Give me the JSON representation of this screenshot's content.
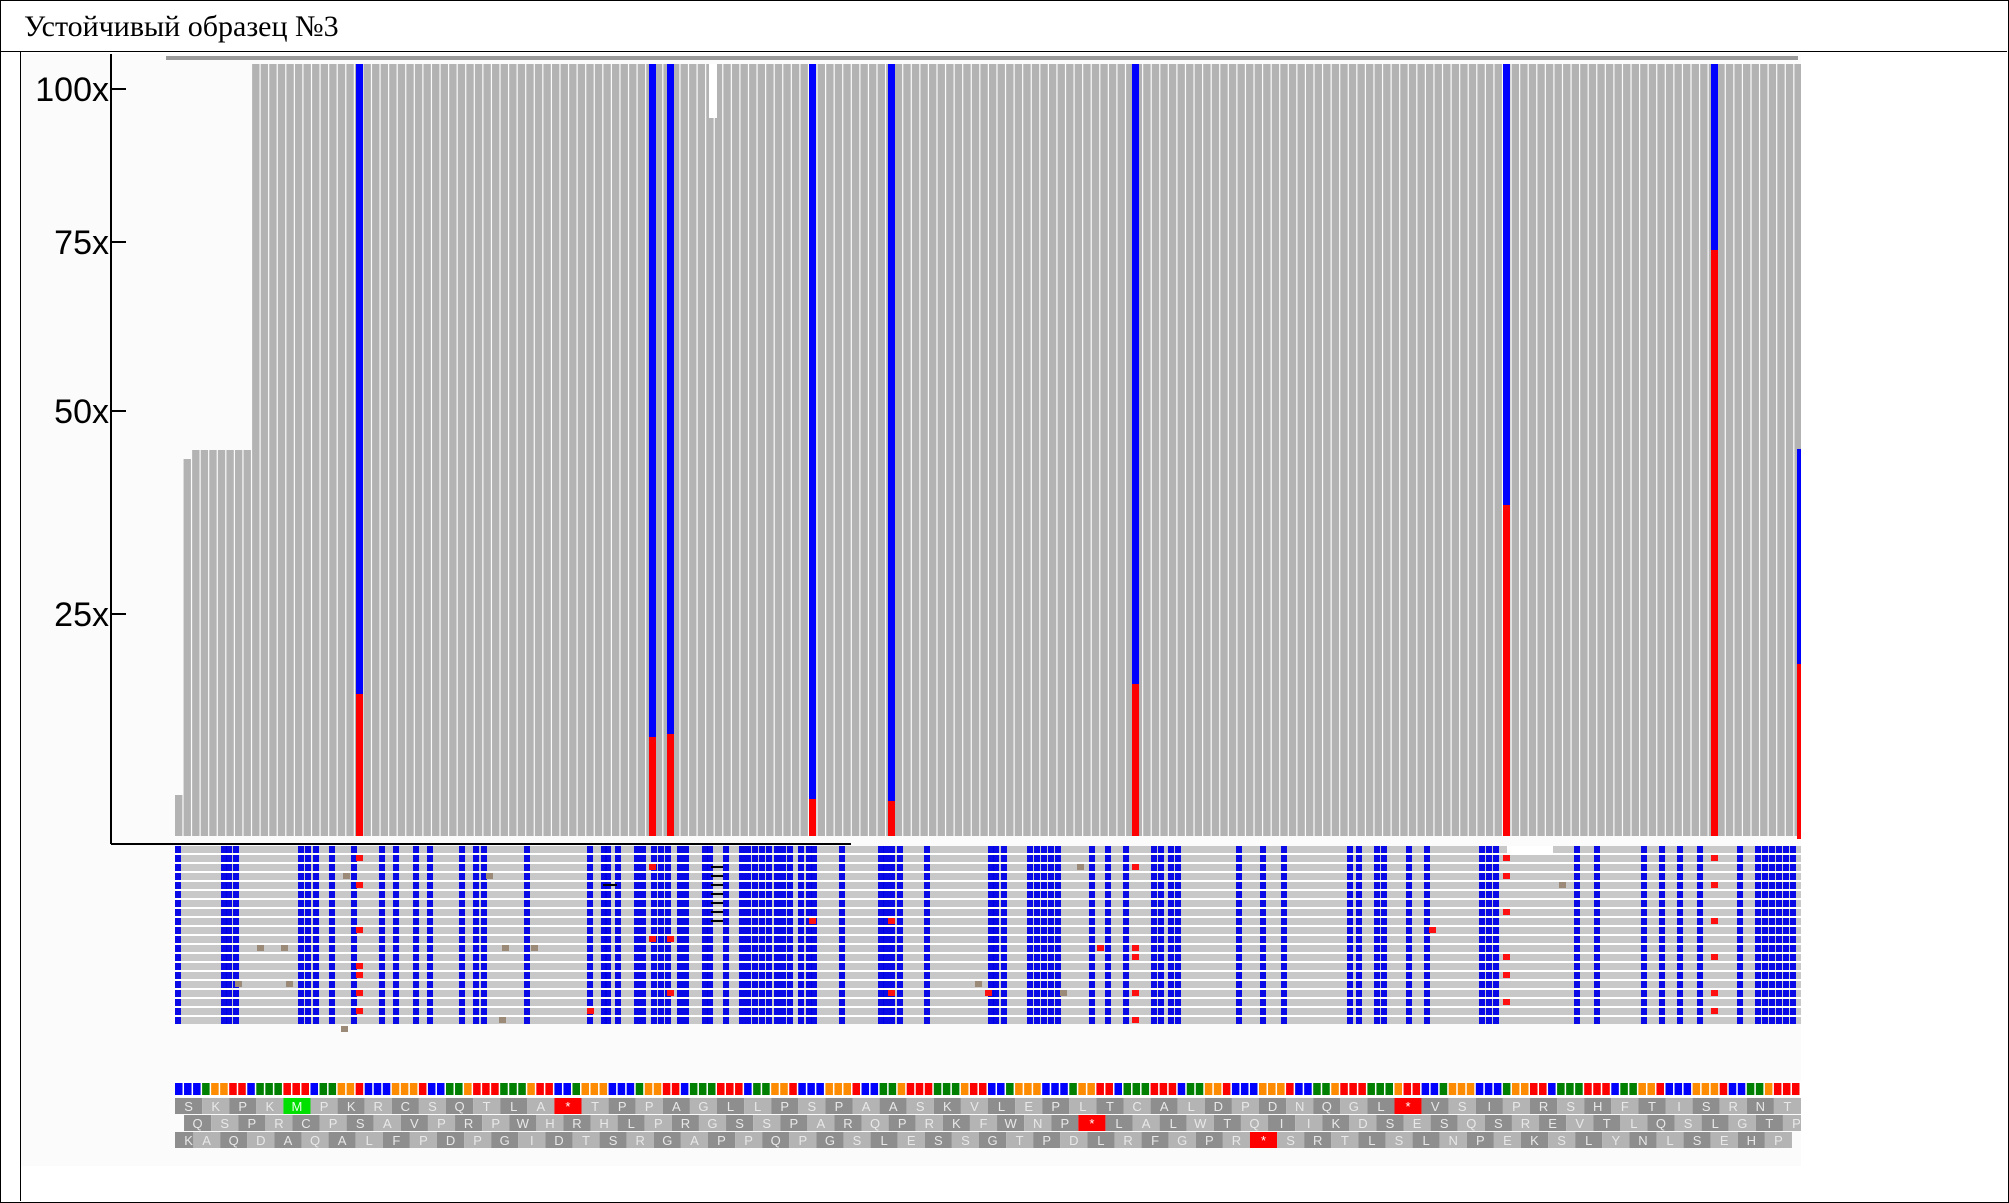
{
  "title": "Устойчивый образец №3",
  "coverage": {
    "axis_labels": [
      "100x",
      "75x",
      "50x",
      "25x"
    ],
    "colors": {
      "bar": "#b3b3b3",
      "allele_a": "#0000ff",
      "allele_b": "#ff0000",
      "axis": "#000000"
    }
  },
  "reads": {
    "colors": {
      "read": "#c8c8c8",
      "mismatch_blue": "#0000e8",
      "mismatch_red": "#ff1010",
      "other": "#9c8a78"
    }
  },
  "sequence": {
    "base_colors": [
      "#0000ff",
      "#008000",
      "#ff8c00",
      "#ff0000"
    ]
  },
  "translation": {
    "frame1": [
      "S",
      "K",
      "P",
      "K",
      "M",
      "P",
      "K",
      "R",
      "C",
      "S",
      "Q",
      "T",
      "L",
      "A",
      "*",
      "T",
      "P",
      "P",
      "A",
      "G",
      "L",
      "L",
      "P",
      "S",
      "P",
      "A",
      "A",
      "S",
      "K",
      "V",
      "L",
      "E",
      "P",
      "L",
      "T",
      "C",
      "A",
      "L",
      "D",
      "P",
      "D",
      "N",
      "Q",
      "G",
      "L",
      "*",
      "V",
      "S",
      "I",
      "P",
      "R",
      "S",
      "H",
      "F",
      "T",
      "I",
      "S",
      "R",
      "N",
      "T"
    ],
    "frame2": [
      "Q",
      "S",
      "P",
      "R",
      "C",
      "P",
      "S",
      "A",
      "V",
      "P",
      "R",
      "P",
      "W",
      "H",
      "R",
      "H",
      "L",
      "P",
      "R",
      "G",
      "S",
      "S",
      "P",
      "A",
      "R",
      "Q",
      "P",
      "R",
      "K",
      "F",
      "W",
      "N",
      "P",
      "*",
      "L",
      "A",
      "L",
      "W",
      "T",
      "Q",
      "I",
      "I",
      "K",
      "D",
      "S",
      "E",
      "S",
      "Q",
      "S",
      "R",
      "E",
      "V",
      "T",
      "L",
      "Q",
      "S",
      "L",
      "G",
      "T",
      "P"
    ],
    "frame3": [
      "K",
      "A",
      "Q",
      "D",
      "A",
      "Q",
      "A",
      "L",
      "F",
      "P",
      "D",
      "P",
      "G",
      "I",
      "D",
      "T",
      "S",
      "R",
      "G",
      "A",
      "P",
      "P",
      "Q",
      "P",
      "G",
      "S",
      "L",
      "E",
      "S",
      "S",
      "G",
      "T",
      "P",
      "D",
      "L",
      "R",
      "F",
      "G",
      "P",
      "R",
      "*",
      "S",
      "R",
      "T",
      "L",
      "S",
      "L",
      "N",
      "P",
      "E",
      "K",
      "S",
      "L",
      "Y",
      "N",
      "L",
      "S",
      "E",
      "H",
      "P"
    ]
  }
}
